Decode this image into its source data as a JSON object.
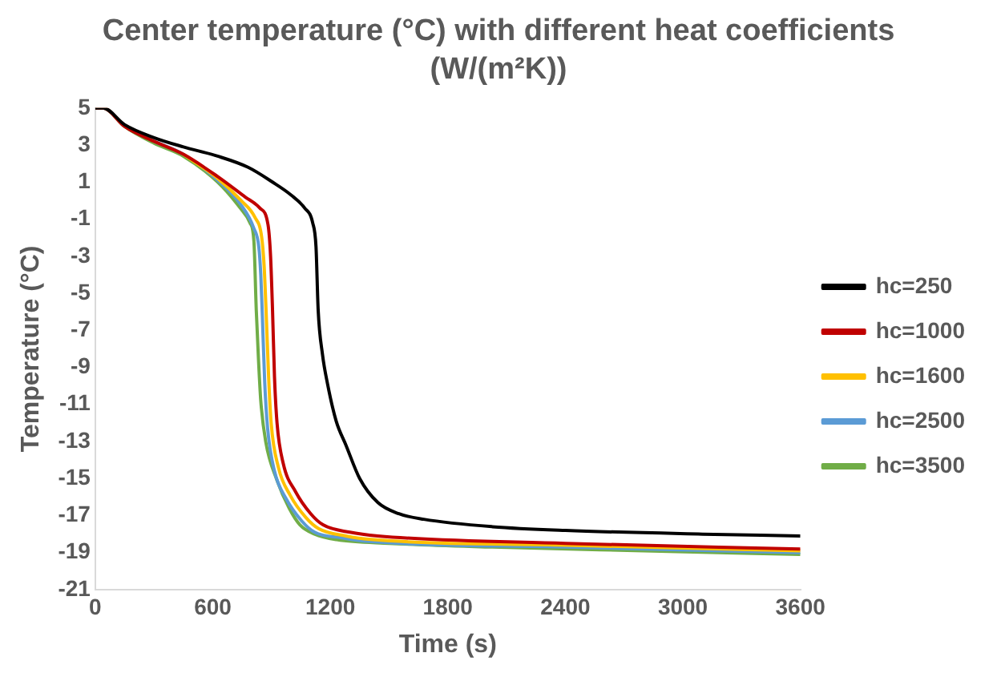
{
  "chart_data": {
    "type": "line",
    "title": "Center temperature (°C) with different heat coefficients (W/(m²K))",
    "xlabel": "Time (s)",
    "ylabel": "Temperature (°C)",
    "xlim": [
      0,
      3600
    ],
    "xticks": [
      0,
      600,
      1200,
      1800,
      2400,
      3000,
      3600
    ],
    "ylim": [
      -21,
      5
    ],
    "yticks": [
      5,
      3,
      1,
      -1,
      -3,
      -5,
      -7,
      -9,
      -11,
      -13,
      -15,
      -17,
      -19,
      -21
    ],
    "grid": false,
    "legend": "right",
    "marker": "none",
    "line_style": "solid",
    "series": [
      {
        "name": "hc=250",
        "color": "#000000",
        "x": [
          0,
          40,
          150,
          300,
          450,
          625,
          780,
          905,
          1000,
          1069,
          1110,
          1127,
          1138,
          1160,
          1186,
          1230,
          1280,
          1350,
          1443,
          1550,
          1677,
          2028,
          2400,
          3100,
          3600
        ],
        "values": [
          5,
          5,
          4.1,
          3.4,
          2.9,
          2.4,
          1.8,
          1.0,
          0.3,
          -0.4,
          -1.2,
          -2.5,
          -5.9,
          -8.3,
          -9.9,
          -11.9,
          -13.2,
          -15.0,
          -16.3,
          -16.9,
          -17.2,
          -17.6,
          -17.8,
          -18.0,
          -18.1
        ]
      },
      {
        "name": "hc=1000",
        "color": "#c00000",
        "x": [
          0,
          40,
          150,
          300,
          450,
          625,
          765,
          840,
          882,
          895,
          905,
          915,
          928,
          960,
          1022,
          1100,
          1163,
          1300,
          1443,
          2400,
          3600
        ],
        "values": [
          5,
          5,
          4.0,
          3.2,
          2.5,
          1.3,
          0.2,
          -0.4,
          -1.3,
          -3.0,
          -5.9,
          -9.5,
          -12.0,
          -14.2,
          -15.7,
          -16.9,
          -17.5,
          -17.9,
          -18.1,
          -18.5,
          -18.8
        ]
      },
      {
        "name": "hc=1600",
        "color": "#ffc000",
        "x": [
          450,
          625,
          745,
          815,
          850,
          862,
          872,
          885,
          898,
          935,
          995,
          1075,
          1140,
          1280,
          1420,
          2400,
          3600
        ],
        "values": [
          2.5,
          1.2,
          0.0,
          -0.9,
          -2.0,
          -3.5,
          -5.9,
          -9.5,
          -12.0,
          -14.4,
          -15.9,
          -17.1,
          -17.7,
          -18.1,
          -18.3,
          -18.6,
          -18.9
        ]
      },
      {
        "name": "hc=2500",
        "color": "#5b9bd5",
        "x": [
          300,
          450,
          625,
          742,
          810,
          835,
          845,
          853,
          865,
          880,
          915,
          975,
          1055,
          1120,
          1260,
          1400,
          2400,
          3600
        ],
        "values": [
          3.2,
          2.5,
          1.1,
          -0.2,
          -1.5,
          -2.5,
          -4.0,
          -6.2,
          -9.8,
          -12.3,
          -14.6,
          -16.1,
          -17.3,
          -17.9,
          -18.2,
          -18.4,
          -18.7,
          -19.0
        ]
      },
      {
        "name": "hc=3500",
        "color": "#70ad47",
        "x": [
          0,
          40,
          150,
          300,
          450,
          625,
          740,
          790,
          810,
          822,
          833,
          845,
          870,
          928,
          990,
          1045,
          1120,
          1233,
          1500,
          2028,
          2800,
          3600
        ],
        "values": [
          5,
          5,
          4.0,
          3.1,
          2.4,
          1.0,
          -0.4,
          -1.2,
          -2.2,
          -5.9,
          -8.5,
          -10.8,
          -13.0,
          -15.1,
          -16.6,
          -17.5,
          -18.0,
          -18.3,
          -18.5,
          -18.7,
          -18.9,
          -19.1
        ]
      }
    ]
  }
}
